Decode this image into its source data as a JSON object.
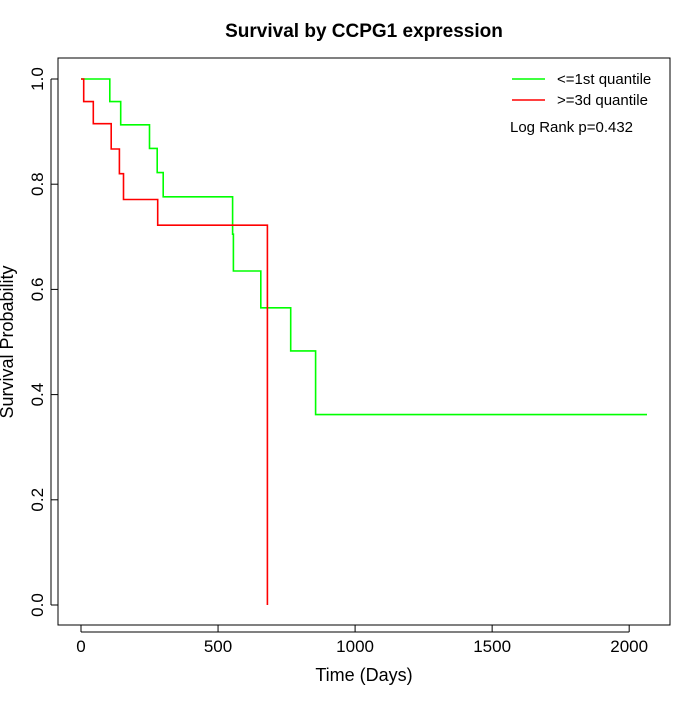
{
  "chart_data": {
    "type": "line",
    "title": "Survival by CCPG1 expression",
    "xlabel": "Time (Days)",
    "ylabel": "Survival Probability",
    "xlim": [
      0,
      2070
    ],
    "ylim": [
      0,
      1
    ],
    "xticks": [
      0,
      500,
      1000,
      1500,
      2000
    ],
    "yticks": [
      0.0,
      0.2,
      0.4,
      0.6,
      0.8,
      1.0
    ],
    "xtick_labels": [
      "0",
      "500",
      "1000",
      "1500",
      "2000"
    ],
    "ytick_labels": [
      "0.0",
      "0.2",
      "0.4",
      "0.6",
      "0.8",
      "1.0"
    ],
    "legend_position": "top-right",
    "annotation": "Log Rank p=0.432",
    "series": [
      {
        "name": "<=1st quantile",
        "color": "#00ff00",
        "step": true,
        "x": [
          0,
          105,
          145,
          250,
          278,
          300,
          553,
          556,
          656,
          765,
          856,
          2065
        ],
        "y": [
          1.0,
          0.957,
          0.913,
          0.868,
          0.822,
          0.776,
          0.705,
          0.635,
          0.565,
          0.483,
          0.362,
          0.362
        ]
      },
      {
        "name": ">=3d quantile",
        "color": "#ff0000",
        "step": true,
        "x": [
          0,
          10,
          45,
          110,
          140,
          155,
          280,
          680
        ],
        "y": [
          1.0,
          0.957,
          0.915,
          0.867,
          0.82,
          0.771,
          0.722,
          0.0
        ]
      }
    ]
  }
}
